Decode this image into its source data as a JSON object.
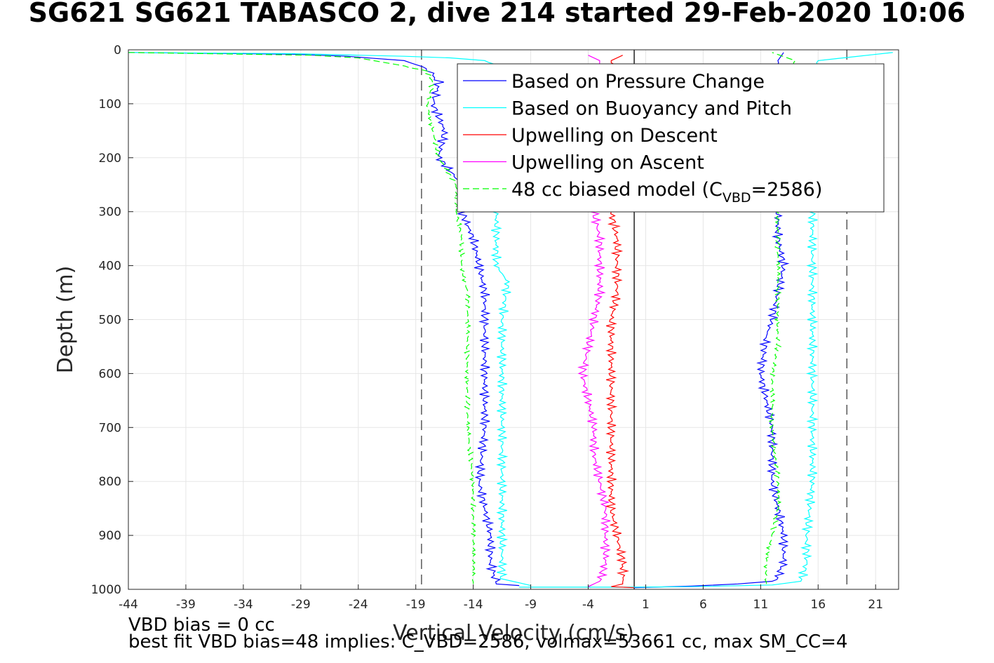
{
  "chart_data": {
    "type": "line",
    "title": "SG621 SG621 TABASCO 2, dive 214 started 29-Feb-2020 10:06",
    "xlabel": "Vertical Velocity (cm/s)",
    "ylabel": "Depth (m)",
    "xlim": [
      -44,
      23
    ],
    "ylim": [
      0,
      1000
    ],
    "y_reversed": true,
    "grid": true,
    "legend_position": "top-right",
    "x_ticks": [
      "-44",
      "-39",
      "-34",
      "-29",
      "-24",
      "-19",
      "-14",
      "-9",
      "-4",
      "1",
      "6",
      "11",
      "16",
      "21"
    ],
    "y_ticks": [
      "0",
      "100",
      "200",
      "300",
      "400",
      "500",
      "600",
      "700",
      "800",
      "900",
      "1000"
    ],
    "reference_lines": [
      {
        "x": -18.5,
        "style": "dashed",
        "color": "#404040"
      },
      {
        "x": 18.5,
        "style": "dashed",
        "color": "#404040"
      },
      {
        "x": 0,
        "style": "solid",
        "color": "#000000"
      }
    ],
    "series": [
      {
        "name": "Based on Pressure Change",
        "color": "#0000ff",
        "style": "solid",
        "descent": [
          [
            -44,
            5
          ],
          [
            -30,
            8
          ],
          [
            -25,
            12
          ],
          [
            -20,
            20
          ],
          [
            -18,
            35
          ],
          [
            -17,
            60
          ],
          [
            -17.5,
            100
          ],
          [
            -16.5,
            150
          ],
          [
            -17,
            200
          ],
          [
            -15,
            250
          ],
          [
            -15,
            300
          ],
          [
            -14,
            350
          ],
          [
            -13.5,
            400
          ],
          [
            -13,
            450
          ],
          [
            -13,
            500
          ],
          [
            -13,
            600
          ],
          [
            -13,
            700
          ],
          [
            -13.5,
            800
          ],
          [
            -12.5,
            900
          ],
          [
            -12.5,
            950
          ],
          [
            -12,
            990
          ],
          [
            -10,
            993
          ]
        ],
        "ascent": [
          [
            0,
            997
          ],
          [
            5,
            994
          ],
          [
            9,
            990
          ],
          [
            12,
            985
          ],
          [
            12.5,
            975
          ],
          [
            13,
            950
          ],
          [
            13,
            900
          ],
          [
            12.5,
            850
          ],
          [
            12,
            800
          ],
          [
            12,
            700
          ],
          [
            11.5,
            650
          ],
          [
            11,
            600
          ],
          [
            11.5,
            530
          ],
          [
            12,
            500
          ],
          [
            12.5,
            450
          ],
          [
            13,
            400
          ],
          [
            12.5,
            350
          ],
          [
            12.5,
            300
          ],
          [
            12.5,
            250
          ],
          [
            12.5,
            200
          ],
          [
            12,
            150
          ],
          [
            12.5,
            100
          ],
          [
            13,
            50
          ],
          [
            12.5,
            20
          ],
          [
            13,
            5
          ]
        ]
      },
      {
        "name": "Based on Buoyancy and Pitch",
        "color": "#00ffff",
        "style": "solid",
        "descent": [
          [
            -44,
            5
          ],
          [
            -30,
            7
          ],
          [
            -24,
            10
          ],
          [
            -20,
            12
          ],
          [
            -16,
            15
          ],
          [
            -13,
            20
          ],
          [
            -12,
            30
          ],
          [
            -12,
            300
          ],
          [
            -12,
            400
          ],
          [
            -11,
            430
          ],
          [
            -11.5,
            500
          ],
          [
            -11.5,
            600
          ],
          [
            -11.5,
            700
          ],
          [
            -11.5,
            800
          ],
          [
            -11.5,
            900
          ],
          [
            -11.5,
            980
          ],
          [
            -9,
            993
          ]
        ],
        "ascent": [
          [
            -10,
            996
          ],
          [
            0,
            996
          ],
          [
            5,
            995
          ],
          [
            12,
            992
          ],
          [
            14.5,
            985
          ],
          [
            15,
            950
          ],
          [
            15,
            900
          ],
          [
            15.5,
            800
          ],
          [
            15.5,
            700
          ],
          [
            15.5,
            600
          ],
          [
            15.5,
            500
          ],
          [
            15.5,
            400
          ],
          [
            15.5,
            300
          ],
          [
            16,
            260
          ],
          [
            15.5,
            200
          ],
          [
            15.5,
            100
          ],
          [
            15,
            50
          ],
          [
            16,
            20
          ],
          [
            22.5,
            5
          ]
        ]
      },
      {
        "name": "Upwelling on Descent",
        "color": "#ff0000",
        "style": "solid",
        "values": [
          [
            -1,
            10
          ],
          [
            -2,
            20
          ],
          [
            -2,
            300
          ],
          [
            -1.5,
            350
          ],
          [
            -1.5,
            400
          ],
          [
            -1.5,
            450
          ],
          [
            -2,
            500
          ],
          [
            -2,
            550
          ],
          [
            -2,
            600
          ],
          [
            -2,
            650
          ],
          [
            -2,
            700
          ],
          [
            -2,
            750
          ],
          [
            -2,
            800
          ],
          [
            -2,
            850
          ],
          [
            -1.5,
            900
          ],
          [
            -1,
            950
          ],
          [
            -1,
            990
          ],
          [
            -2,
            995
          ],
          [
            0,
            997
          ]
        ]
      },
      {
        "name": "Upwelling on Ascent",
        "color": "#ff00ff",
        "style": "solid",
        "values": [
          [
            -4,
            10
          ],
          [
            -3,
            20
          ],
          [
            -3.5,
            300
          ],
          [
            -3,
            350
          ],
          [
            -3,
            400
          ],
          [
            -3,
            450
          ],
          [
            -3.5,
            500
          ],
          [
            -4,
            550
          ],
          [
            -4.5,
            600
          ],
          [
            -4,
            650
          ],
          [
            -3.5,
            700
          ],
          [
            -3.5,
            750
          ],
          [
            -3,
            800
          ],
          [
            -2.5,
            850
          ],
          [
            -2.5,
            900
          ],
          [
            -2.5,
            950
          ],
          [
            -3,
            985
          ],
          [
            -4,
            995
          ]
        ]
      },
      {
        "name": "48 cc biased model (C_VBD=2586)",
        "color": "#00ff00",
        "style": "dashed",
        "descent": [
          [
            -44,
            5
          ],
          [
            -28,
            10
          ],
          [
            -24,
            15
          ],
          [
            -20,
            30
          ],
          [
            -18,
            40
          ],
          [
            -17.5,
            60
          ],
          [
            -18,
            100
          ],
          [
            -17.5,
            150
          ],
          [
            -17,
            200
          ],
          [
            -15.5,
            250
          ],
          [
            -15.5,
            300
          ],
          [
            -15,
            350
          ],
          [
            -15,
            400
          ],
          [
            -14.5,
            450
          ],
          [
            -14.5,
            500
          ],
          [
            -14.5,
            600
          ],
          [
            -14.5,
            700
          ],
          [
            -14,
            800
          ],
          [
            -14,
            900
          ],
          [
            -14,
            990
          ]
        ],
        "ascent": [
          [
            11.5,
            990
          ],
          [
            11.5,
            950
          ],
          [
            12,
            900
          ],
          [
            12.5,
            850
          ],
          [
            12.5,
            800
          ],
          [
            12,
            700
          ],
          [
            12,
            650
          ],
          [
            12,
            600
          ],
          [
            12.5,
            550
          ],
          [
            12.5,
            500
          ],
          [
            12.5,
            450
          ],
          [
            12.5,
            400
          ],
          [
            12.5,
            350
          ],
          [
            12.5,
            300
          ],
          [
            12.5,
            250
          ],
          [
            12.5,
            200
          ],
          [
            12.5,
            100
          ],
          [
            13,
            50
          ],
          [
            14,
            20
          ],
          [
            12,
            5
          ]
        ]
      }
    ],
    "legend": [
      {
        "label": "Based on Pressure Change",
        "color": "#0000ff",
        "dash": false
      },
      {
        "label": "Based on Buoyancy and Pitch",
        "color": "#00ffff",
        "dash": false
      },
      {
        "label": "Upwelling on Descent",
        "color": "#ff0000",
        "dash": false
      },
      {
        "label": "Upwelling on Ascent",
        "color": "#ff00ff",
        "dash": false
      },
      {
        "label_main": "48 cc biased model (C",
        "label_sub": "VBD",
        "label_end": "=2586)",
        "color": "#00ff00",
        "dash": true
      }
    ]
  },
  "footnotes": {
    "line1": "VBD bias = 0 cc",
    "line2": "best fit VBD bias=48 implies: C_VBD=2586, volmax=53661 cc, max SM_CC=4"
  }
}
